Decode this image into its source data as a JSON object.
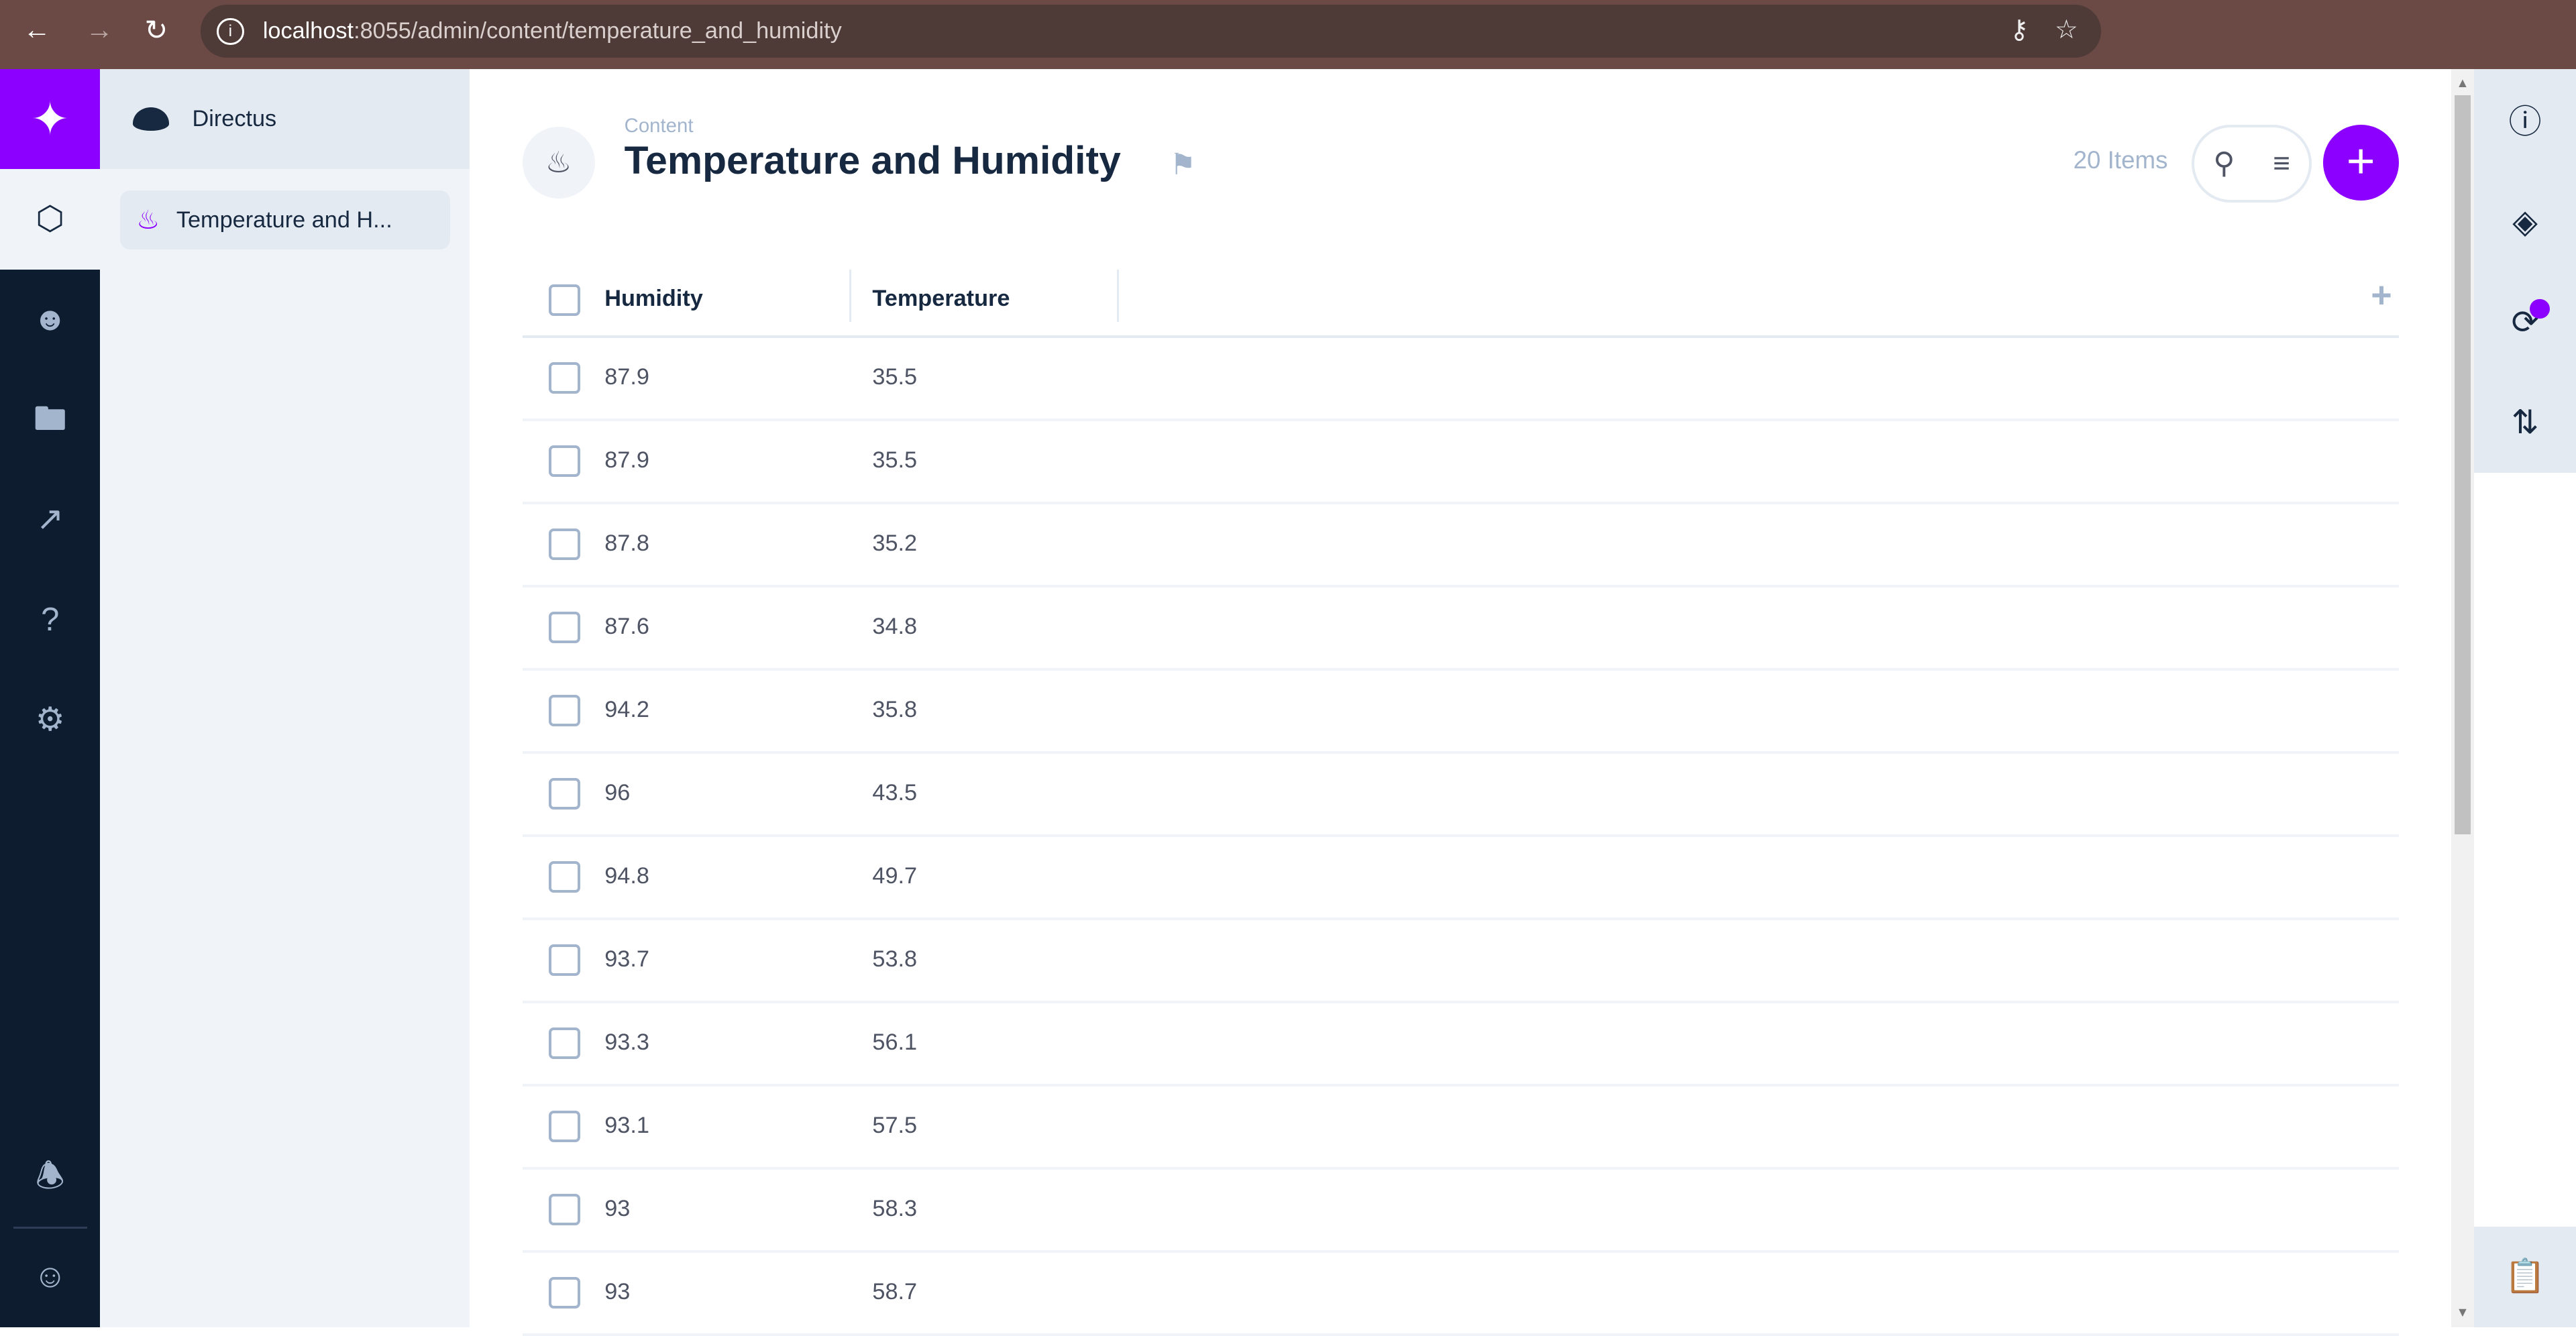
{
  "browser": {
    "url_host": "localhost",
    "url_path": ":8055/admin/content/temperature_and_humidity"
  },
  "brand": {
    "accent": "#8b00ff",
    "name": "Directus"
  },
  "rail": {
    "items": [
      {
        "icon": "cube-icon"
      },
      {
        "icon": "users-icon"
      },
      {
        "icon": "folder-icon"
      },
      {
        "icon": "insights-icon"
      },
      {
        "icon": "help-icon"
      },
      {
        "icon": "settings-icon"
      },
      {
        "icon": "bell-icon"
      },
      {
        "icon": "account-icon"
      }
    ]
  },
  "nav": {
    "project": "Directus",
    "collection": "Temperature and H..."
  },
  "header": {
    "breadcrumb": "Content",
    "title": "Temperature and Humidity",
    "count": "20 Items",
    "add_symbol": "+"
  },
  "table": {
    "columns": [
      "Humidity",
      "Temperature"
    ],
    "rows": [
      [
        "87.9",
        "35.5"
      ],
      [
        "87.9",
        "35.5"
      ],
      [
        "87.8",
        "35.2"
      ],
      [
        "87.6",
        "34.8"
      ],
      [
        "94.2",
        "35.8"
      ],
      [
        "96",
        "43.5"
      ],
      [
        "94.8",
        "49.7"
      ],
      [
        "93.7",
        "53.8"
      ],
      [
        "93.3",
        "56.1"
      ],
      [
        "93.1",
        "57.5"
      ],
      [
        "93",
        "58.3"
      ],
      [
        "93",
        "58.7"
      ]
    ]
  }
}
